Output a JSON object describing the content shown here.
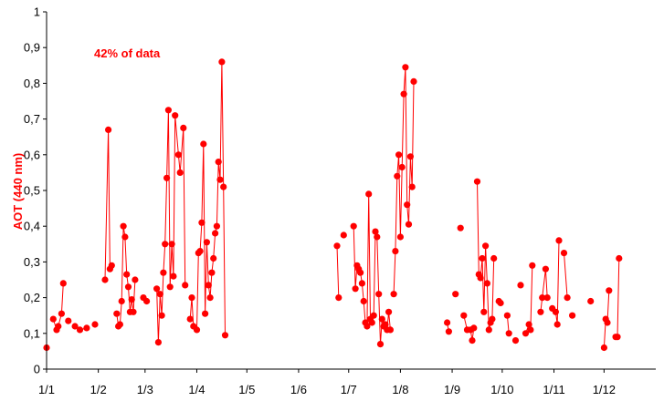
{
  "chart_data": {
    "type": "line",
    "ylabel": "AOT (440 nm)",
    "annotation": "42% of data",
    "ylim": [
      0,
      1
    ],
    "yticks": [
      "0",
      "0,1",
      "0,2",
      "0,3",
      "0,4",
      "0,5",
      "0,6",
      "0,7",
      "0,8",
      "0,9",
      "1"
    ],
    "xlim": [
      1,
      366
    ],
    "xticks": [
      {
        "label": "1/1",
        "day": 1
      },
      {
        "label": "1/2",
        "day": 32
      },
      {
        "label": "1/3",
        "day": 60
      },
      {
        "label": "1/4",
        "day": 91
      },
      {
        "label": "1/5",
        "day": 121
      },
      {
        "label": "1/6",
        "day": 152
      },
      {
        "label": "1/7",
        "day": 182
      },
      {
        "label": "1/8",
        "day": 213
      },
      {
        "label": "1/9",
        "day": 244
      },
      {
        "label": "1/10",
        "day": 274
      },
      {
        "label": "1/11",
        "day": 305
      },
      {
        "label": "1/12",
        "day": 335
      }
    ],
    "grid": false,
    "colors": {
      "series": "#ff0000",
      "axis": "#000000",
      "text": "#000000"
    },
    "series": [
      {
        "segments": [
          [
            [
              1,
              0.06
            ]
          ],
          [
            [
              5,
              0.14
            ],
            [
              7,
              0.11
            ],
            [
              8,
              0.12
            ],
            [
              10,
              0.155
            ],
            [
              11,
              0.24
            ]
          ],
          [
            [
              14,
              0.135
            ]
          ],
          [
            [
              18,
              0.12
            ],
            [
              21,
              0.11
            ],
            [
              25,
              0.115
            ]
          ],
          [
            [
              30,
              0.125
            ]
          ],
          [
            [
              36,
              0.25
            ],
            [
              38,
              0.67
            ],
            [
              39,
              0.28
            ],
            [
              40,
              0.29
            ]
          ],
          [
            [
              43,
              0.155
            ],
            [
              44,
              0.12
            ],
            [
              45,
              0.125
            ],
            [
              46,
              0.19
            ],
            [
              47,
              0.4
            ],
            [
              48,
              0.37
            ],
            [
              49,
              0.265
            ],
            [
              50,
              0.23
            ],
            [
              51,
              0.16
            ],
            [
              52,
              0.195
            ],
            [
              53,
              0.16
            ],
            [
              54,
              0.25
            ]
          ],
          [
            [
              59,
              0.2
            ],
            [
              61,
              0.19
            ]
          ],
          [
            [
              67,
              0.225
            ],
            [
              68,
              0.075
            ],
            [
              69,
              0.21
            ],
            [
              70,
              0.15
            ],
            [
              71,
              0.27
            ],
            [
              72,
              0.35
            ],
            [
              73,
              0.535
            ],
            [
              74,
              0.725
            ],
            [
              75,
              0.23
            ],
            [
              76,
              0.35
            ],
            [
              77,
              0.26
            ],
            [
              78,
              0.71
            ],
            [
              80,
              0.6
            ],
            [
              81,
              0.55
            ],
            [
              83,
              0.675
            ],
            [
              84,
              0.235
            ]
          ],
          [
            [
              87,
              0.14
            ],
            [
              88,
              0.2
            ],
            [
              89,
              0.12
            ],
            [
              91,
              0.11
            ],
            [
              92,
              0.325
            ],
            [
              93,
              0.33
            ],
            [
              94,
              0.41
            ],
            [
              95,
              0.63
            ],
            [
              96,
              0.155
            ],
            [
              97,
              0.355
            ],
            [
              98,
              0.235
            ],
            [
              99,
              0.2
            ],
            [
              100,
              0.27
            ],
            [
              101,
              0.31
            ],
            [
              102,
              0.38
            ],
            [
              103,
              0.4
            ],
            [
              104,
              0.58
            ],
            [
              105,
              0.53
            ],
            [
              106,
              0.86
            ],
            [
              107,
              0.51
            ],
            [
              108,
              0.095
            ]
          ],
          [
            [
              175,
              0.345
            ],
            [
              176,
              0.2
            ]
          ],
          [
            [
              179,
              0.375
            ]
          ],
          [
            [
              185,
              0.4
            ],
            [
              186,
              0.225
            ],
            [
              187,
              0.29
            ],
            [
              188,
              0.28
            ],
            [
              189,
              0.27
            ],
            [
              190,
              0.24
            ],
            [
              191,
              0.19
            ],
            [
              192,
              0.13
            ],
            [
              193,
              0.12
            ],
            [
              194,
              0.49
            ],
            [
              195,
              0.14
            ],
            [
              196,
              0.13
            ],
            [
              197,
              0.15
            ],
            [
              198,
              0.385
            ],
            [
              199,
              0.37
            ],
            [
              200,
              0.21
            ],
            [
              201,
              0.07
            ],
            [
              202,
              0.14
            ],
            [
              203,
              0.12
            ],
            [
              204,
              0.125
            ],
            [
              205,
              0.11
            ],
            [
              206,
              0.16
            ],
            [
              207,
              0.11
            ]
          ],
          [
            [
              209,
              0.21
            ],
            [
              210,
              0.33
            ],
            [
              211,
              0.54
            ],
            [
              212,
              0.6
            ],
            [
              213,
              0.37
            ],
            [
              214,
              0.565
            ],
            [
              215,
              0.77
            ],
            [
              216,
              0.845
            ],
            [
              217,
              0.46
            ],
            [
              218,
              0.405
            ],
            [
              219,
              0.595
            ],
            [
              220,
              0.51
            ],
            [
              221,
              0.805
            ]
          ],
          [
            [
              241,
              0.13
            ],
            [
              242,
              0.105
            ]
          ],
          [
            [
              246,
              0.21
            ]
          ],
          [
            [
              249,
              0.395
            ]
          ],
          [
            [
              251,
              0.15
            ],
            [
              253,
              0.11
            ],
            [
              255,
              0.11
            ],
            [
              256,
              0.08
            ],
            [
              257,
              0.115
            ]
          ],
          [
            [
              259,
              0.525
            ],
            [
              260,
              0.265
            ],
            [
              261,
              0.255
            ],
            [
              262,
              0.31
            ],
            [
              263,
              0.16
            ],
            [
              264,
              0.345
            ],
            [
              265,
              0.24
            ],
            [
              266,
              0.11
            ],
            [
              267,
              0.13
            ],
            [
              268,
              0.14
            ],
            [
              269,
              0.31
            ]
          ],
          [
            [
              272,
              0.19
            ],
            [
              273,
              0.185
            ]
          ],
          [
            [
              277,
              0.15
            ],
            [
              278,
              0.1
            ]
          ],
          [
            [
              282,
              0.08
            ]
          ],
          [
            [
              285,
              0.235
            ]
          ],
          [
            [
              288,
              0.1
            ],
            [
              290,
              0.125
            ],
            [
              291,
              0.11
            ],
            [
              292,
              0.29
            ]
          ],
          [
            [
              297,
              0.16
            ],
            [
              298,
              0.2
            ],
            [
              300,
              0.28
            ],
            [
              301,
              0.2
            ]
          ],
          [
            [
              304,
              0.17
            ],
            [
              306,
              0.16
            ],
            [
              307,
              0.125
            ],
            [
              308,
              0.36
            ]
          ],
          [
            [
              311,
              0.325
            ],
            [
              313,
              0.2
            ]
          ],
          [
            [
              316,
              0.15
            ]
          ],
          [
            [
              327,
              0.19
            ]
          ],
          [
            [
              335,
              0.06
            ],
            [
              336,
              0.14
            ],
            [
              337,
              0.13
            ],
            [
              338,
              0.22
            ]
          ],
          [
            [
              342,
              0.09
            ],
            [
              343,
              0.09
            ],
            [
              344,
              0.31
            ]
          ]
        ]
      }
    ]
  }
}
